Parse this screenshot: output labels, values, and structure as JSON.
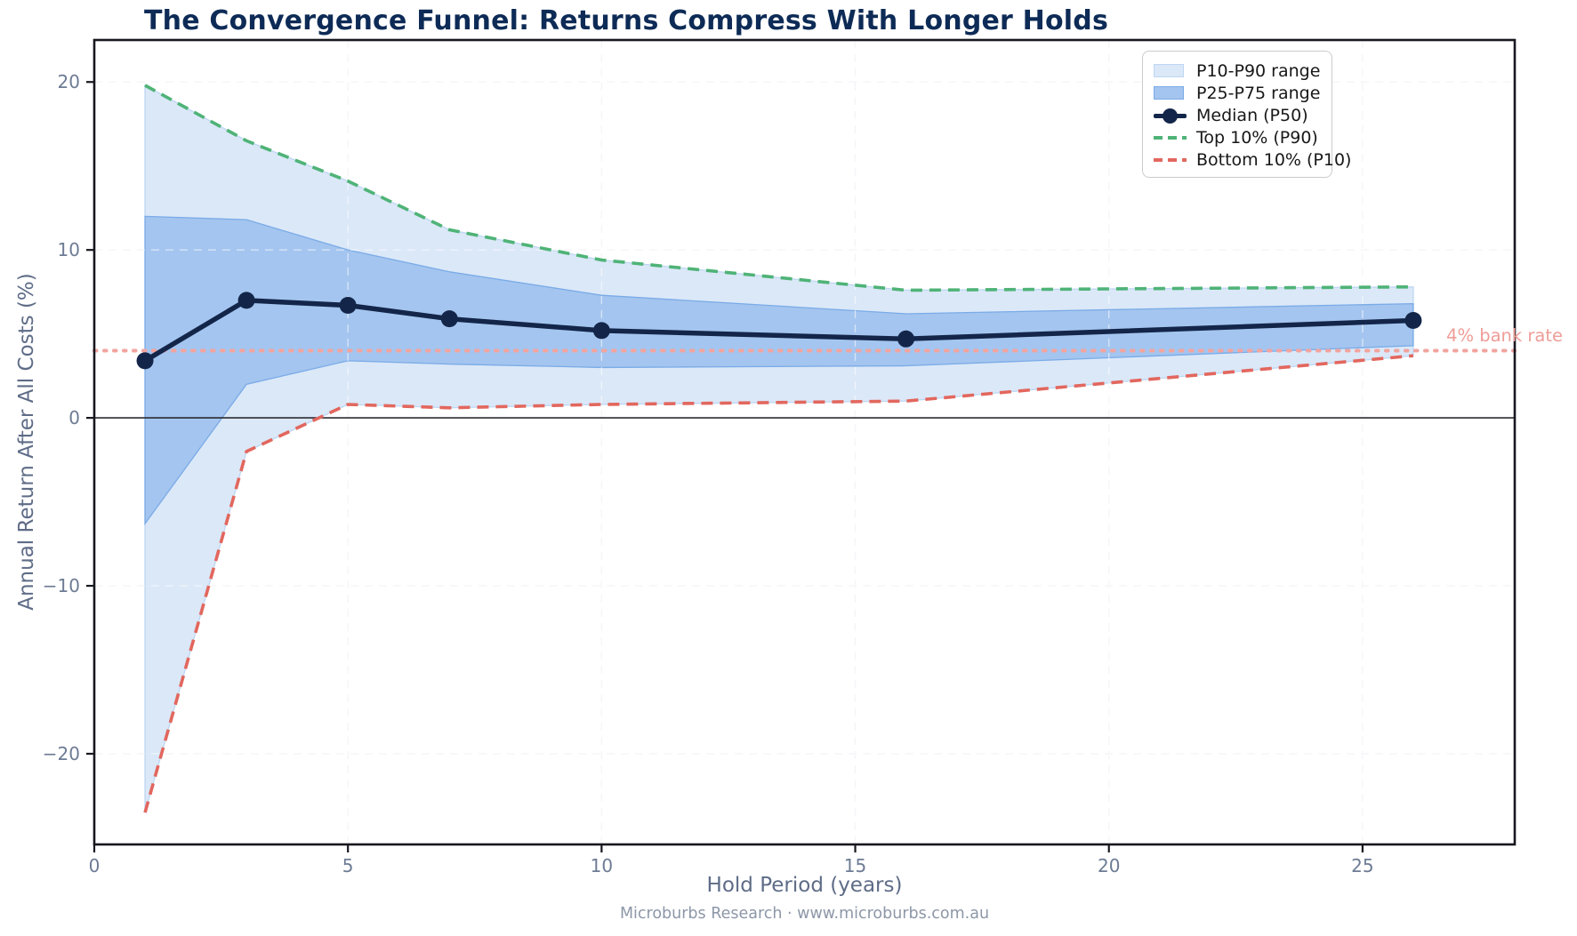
{
  "figure": {
    "title": "The Convergence Funnel: Returns Compress With Longer Holds",
    "x_axis_label": "Hold Period (years)",
    "y_axis_label": "Annual Return After All Costs (%)",
    "footer": "Microburbs Research · www.microburbs.com.au",
    "bank_rate_label": "4% bank rate"
  },
  "legend": {
    "items": [
      {
        "label": "P10-P90 range",
        "swatch": "patch",
        "fill": "#dbe8f8",
        "edge": "#bdd7f3"
      },
      {
        "label": "P25-P75 range",
        "swatch": "patch",
        "fill": "#a4c5ef",
        "edge": "#7aabe7"
      },
      {
        "label": "Median (P50)",
        "swatch": "marker",
        "color": "#13264a"
      },
      {
        "label": "Top 10% (P90)",
        "swatch": "dash",
        "color": "#4fb377"
      },
      {
        "label": "Bottom 10% (P10)",
        "swatch": "dash",
        "color": "#e2675e"
      }
    ]
  },
  "chart_data": {
    "type": "area",
    "title": "The Convergence Funnel: Returns Compress With Longer Holds",
    "xlabel": "Hold Period (years)",
    "ylabel": "Annual Return After All Costs (%)",
    "x": [
      1,
      3,
      5,
      7,
      10,
      16,
      26
    ],
    "series": [
      {
        "name": "Top 10% (P90)",
        "values": [
          19.8,
          16.5,
          14.1,
          11.2,
          9.4,
          7.6,
          7.8
        ]
      },
      {
        "name": "P75",
        "values": [
          12.0,
          11.8,
          10.0,
          8.7,
          7.3,
          6.2,
          6.8
        ]
      },
      {
        "name": "Median (P50)",
        "values": [
          3.4,
          7.0,
          6.7,
          5.9,
          5.2,
          4.7,
          5.8
        ]
      },
      {
        "name": "P25",
        "values": [
          -6.3,
          2.0,
          3.4,
          3.2,
          3.0,
          3.1,
          4.3
        ]
      },
      {
        "name": "Bottom 10% (P10)",
        "values": [
          -23.5,
          -2.0,
          0.8,
          0.6,
          0.8,
          1.0,
          3.7
        ]
      }
    ],
    "bands": [
      {
        "name": "P10-P90 range",
        "upper": "Top 10% (P90)",
        "lower": "Bottom 10% (P10)"
      },
      {
        "name": "P25-P75 range",
        "upper": "P75",
        "lower": "P25"
      }
    ],
    "reference_lines": [
      {
        "name": "bank-rate",
        "y": 4.0,
        "label": "4% bank rate",
        "style": "dotted"
      },
      {
        "name": "zero",
        "y": 0.0,
        "label": "",
        "style": "solid"
      }
    ],
    "xlim": [
      0,
      28
    ],
    "ylim": [
      -25.4,
      22.5
    ],
    "xticks": [
      {
        "v": 0,
        "label": "0"
      },
      {
        "v": 5,
        "label": "5"
      },
      {
        "v": 10,
        "label": "10"
      },
      {
        "v": 15,
        "label": "15"
      },
      {
        "v": 20,
        "label": "20"
      },
      {
        "v": 25,
        "label": "25"
      }
    ],
    "yticks": [
      {
        "v": -20,
        "label": "−20"
      },
      {
        "v": -10,
        "label": "−10"
      },
      {
        "v": 0,
        "label": "0"
      },
      {
        "v": 10,
        "label": "10"
      },
      {
        "v": 20,
        "label": "20"
      }
    ],
    "grid": true,
    "legend_position": "upper right"
  },
  "colors": {
    "title": "#0d2b56",
    "band_outer_fill": "#dbe8f8",
    "band_outer_edge": "#bdd7f3",
    "band_inner_fill": "#a4c5ef",
    "band_inner_edge": "#7aabe7",
    "median": "#13264a",
    "p90": "#4fb377",
    "p10": "#e2675e",
    "bank_rate": "#f2a49f",
    "bank_rate_text": "#ee9d97",
    "grid_under": "#ededf2",
    "grid_over": "#ffffff",
    "zero_line": "#2b2b33",
    "spine": "#17171f",
    "tick_text": "#6d7b94",
    "axis_label_text": "#5e6c87",
    "footer_text": "#8d97a8"
  }
}
